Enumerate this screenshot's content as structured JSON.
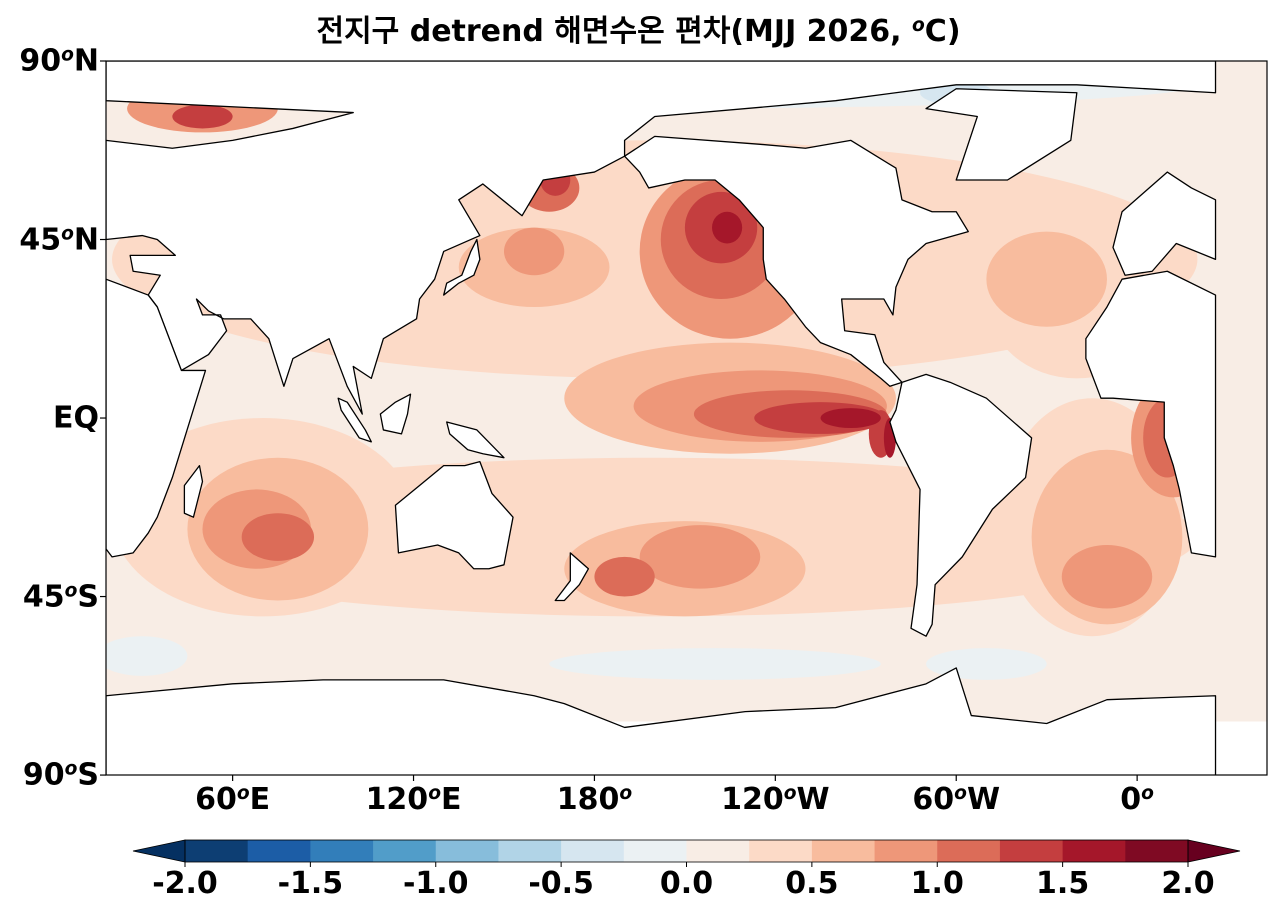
{
  "title": {
    "text": "전지구 detrend 해면수온 편차(MJJ 2026, ",
    "deg": "o",
    "tail": "C)"
  },
  "y_ticks": [
    {
      "num": "90",
      "deg": "o",
      "hem": "N"
    },
    {
      "num": "45",
      "deg": "o",
      "hem": "N"
    },
    {
      "num": "EQ",
      "deg": "",
      "hem": ""
    },
    {
      "num": "45",
      "deg": "o",
      "hem": "S"
    },
    {
      "num": "90",
      "deg": "o",
      "hem": "S"
    }
  ],
  "x_ticks": [
    {
      "num": "60",
      "deg": "o",
      "hem": "E"
    },
    {
      "num": "120",
      "deg": "o",
      "hem": "E"
    },
    {
      "num": "180",
      "deg": "o",
      "hem": ""
    },
    {
      "num": "120",
      "deg": "o",
      "hem": "W"
    },
    {
      "num": "60",
      "deg": "o",
      "hem": "W"
    },
    {
      "num": "0",
      "deg": "o",
      "hem": ""
    }
  ],
  "colorbar": {
    "ticks": [
      "-2.0",
      "-1.5",
      "-1.0",
      "-0.5",
      "0.0",
      "0.5",
      "1.0",
      "1.5",
      "2.0"
    ],
    "levels": [
      -2.0,
      -1.75,
      -1.5,
      -1.25,
      -1.0,
      -0.75,
      -0.5,
      -0.25,
      0.0,
      0.25,
      0.5,
      0.75,
      1.0,
      1.25,
      1.5,
      1.75,
      2.0
    ],
    "colors": [
      "#0d3e73",
      "#1c5da6",
      "#327eba",
      "#519dc9",
      "#87bddb",
      "#b1d4e7",
      "#d6e6f0",
      "#ebf1f3",
      "#f8ede5",
      "#fcdac7",
      "#f8bc9e",
      "#ee9779",
      "#dc6c58",
      "#c43e3f",
      "#a5172a",
      "#7f0a23"
    ],
    "extend_low": "#053061",
    "extend_high": "#67001f"
  }
}
